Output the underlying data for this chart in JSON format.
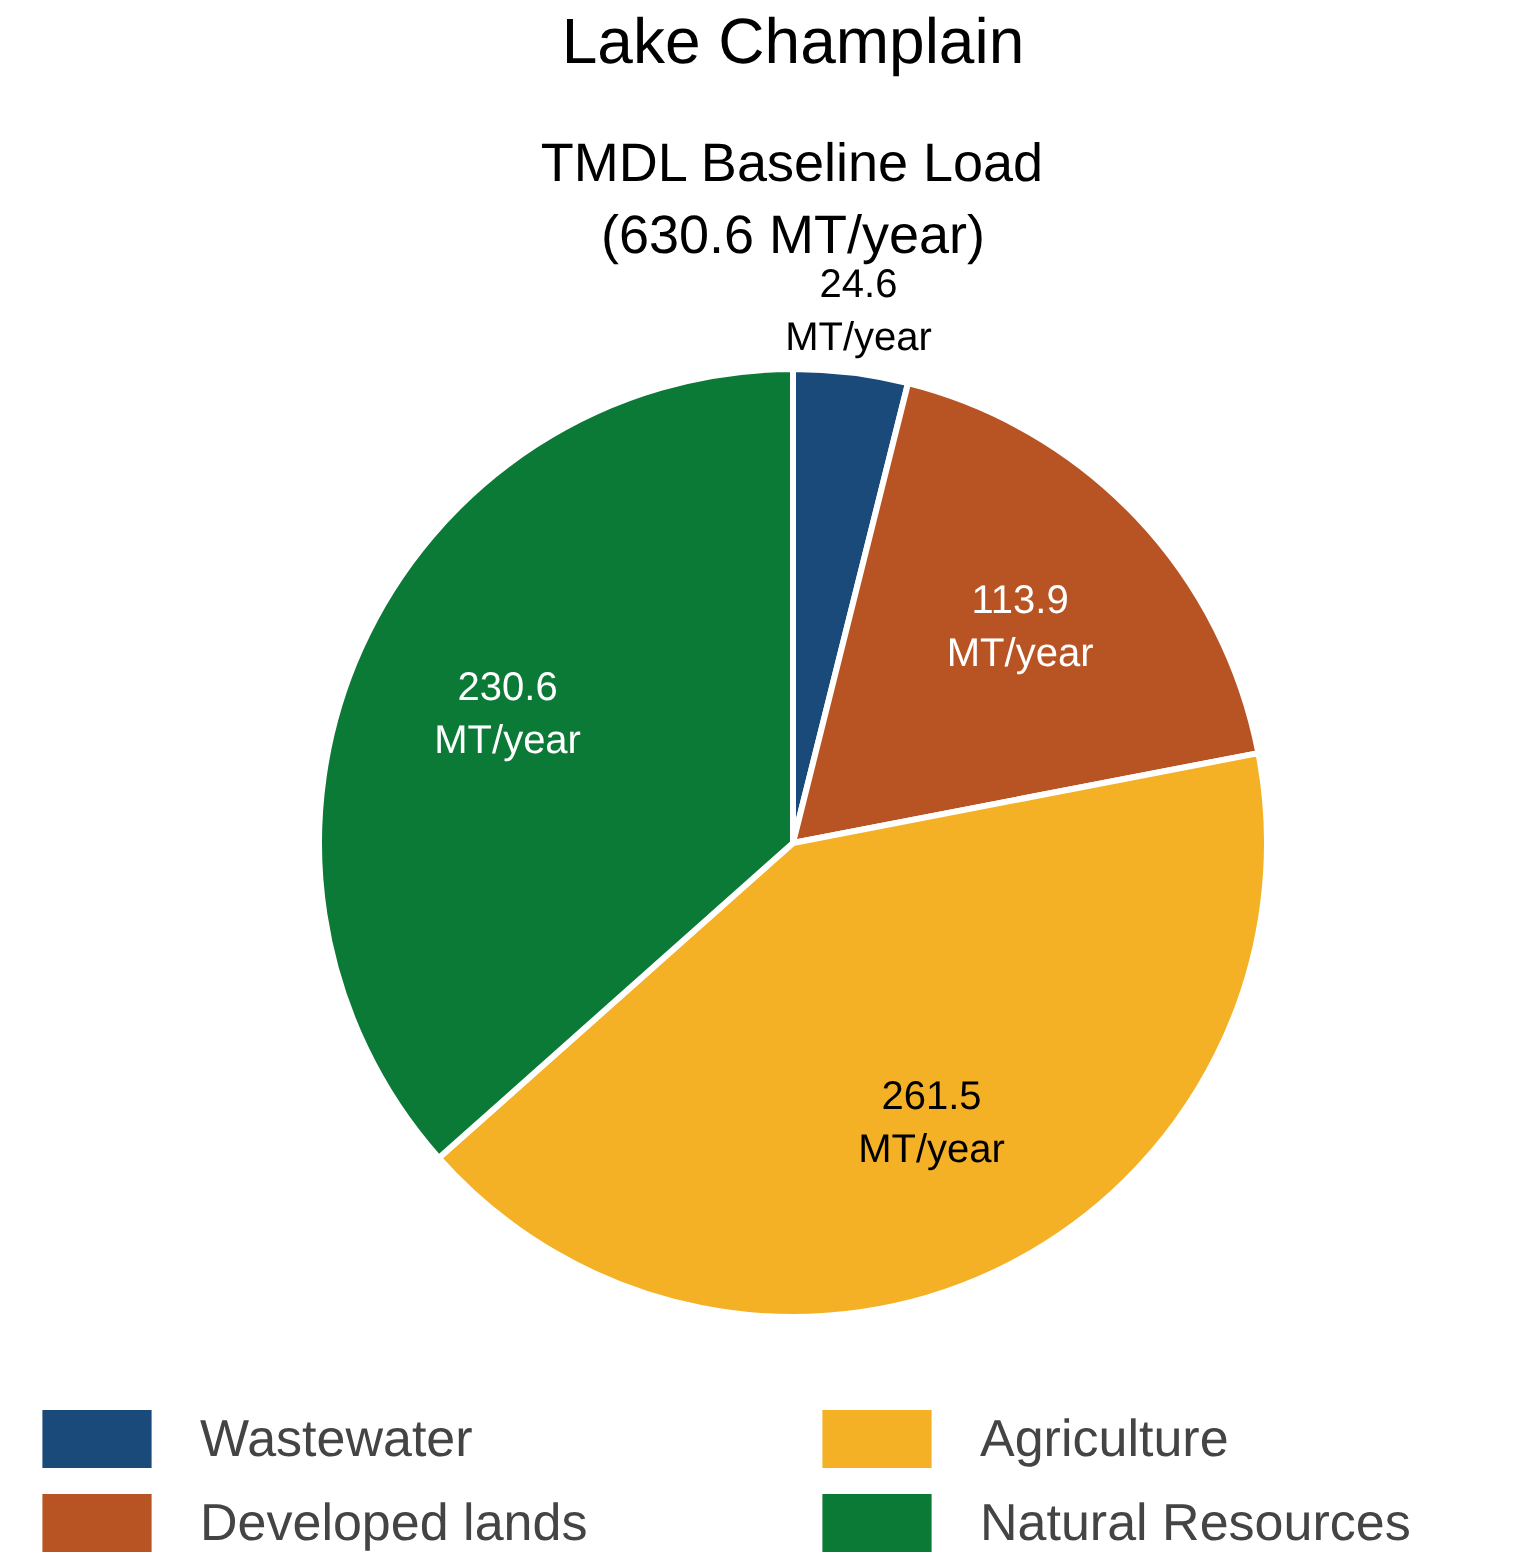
{
  "chart_data": {
    "type": "pie",
    "title": "Lake Champlain",
    "subtitle": "TMDL Baseline Load\n(630.6 MT/year)",
    "categories": [
      "Wastewater",
      "Developed lands",
      "Agriculture",
      "Natural Resources"
    ],
    "values": [
      24.6,
      113.9,
      261.5,
      230.6
    ],
    "colors": [
      "#1a4a7a",
      "#b85424",
      "#f4b126",
      "#0b7a37"
    ],
    "value_labels": [
      "24.6\nMT/year",
      "113.9\nMT/year",
      "261.5\nMT/year",
      "230.6\nMT/year"
    ],
    "legend": "bottom"
  }
}
